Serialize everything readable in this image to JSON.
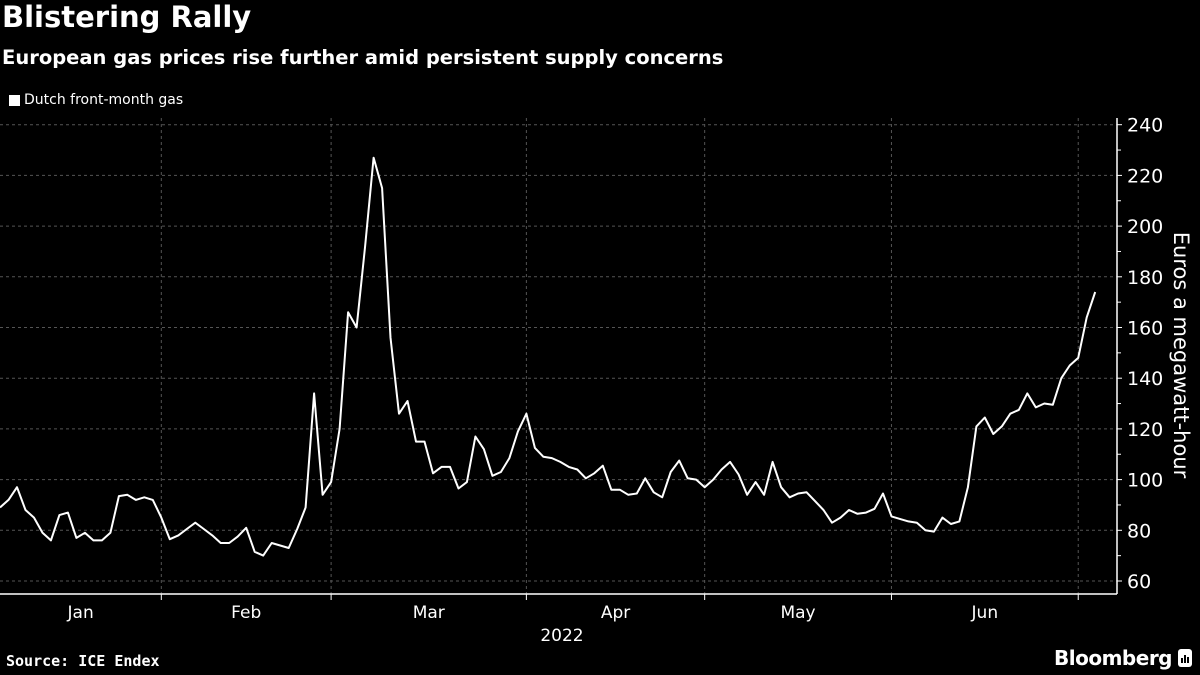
{
  "header": {
    "title": "Blistering Rally",
    "subtitle": "European gas prices rise further amid persistent supply concerns"
  },
  "footer": {
    "source": "Source: ICE Endex",
    "brand": "Bloomberg"
  },
  "colors": {
    "background": "#000000",
    "line": "#ffffff",
    "grid": "#555555"
  },
  "chart_data": {
    "type": "line",
    "title": "Blistering Rally",
    "subtitle": "European gas prices rise further amid persistent supply concerns",
    "xlabel": "2022",
    "ylabel": "Euros a megawatt-hour",
    "ylim": [
      55,
      245
    ],
    "yticks": [
      60,
      80,
      100,
      120,
      140,
      160,
      180,
      200,
      220,
      240
    ],
    "xtick_labels": [
      "Jan",
      "Feb",
      "Mar",
      "Apr",
      "May",
      "Jun"
    ],
    "grid": true,
    "legend_position": "top-left",
    "y_axis_side": "right",
    "series": [
      {
        "name": "Dutch front-month gas",
        "color": "#ffffff",
        "x": [
          "2022-01-05",
          "2022-01-06",
          "2022-01-07",
          "2022-01-10",
          "2022-01-11",
          "2022-01-12",
          "2022-01-13",
          "2022-01-14",
          "2022-01-17",
          "2022-01-18",
          "2022-01-19",
          "2022-01-20",
          "2022-01-21",
          "2022-01-24",
          "2022-01-25",
          "2022-01-26",
          "2022-01-27",
          "2022-01-28",
          "2022-01-31",
          "2022-02-01",
          "2022-02-02",
          "2022-02-03",
          "2022-02-04",
          "2022-02-07",
          "2022-02-08",
          "2022-02-09",
          "2022-02-10",
          "2022-02-11",
          "2022-02-14",
          "2022-02-15",
          "2022-02-16",
          "2022-02-17",
          "2022-02-18",
          "2022-02-21",
          "2022-02-22",
          "2022-02-23",
          "2022-02-24",
          "2022-02-25",
          "2022-02-28",
          "2022-03-01",
          "2022-03-02",
          "2022-03-03",
          "2022-03-04",
          "2022-03-07",
          "2022-03-08",
          "2022-03-09",
          "2022-03-10",
          "2022-03-11",
          "2022-03-14",
          "2022-03-15",
          "2022-03-16",
          "2022-03-17",
          "2022-03-18",
          "2022-03-21",
          "2022-03-22",
          "2022-03-23",
          "2022-03-24",
          "2022-03-25",
          "2022-03-28",
          "2022-03-29",
          "2022-03-30",
          "2022-03-31",
          "2022-04-01",
          "2022-04-04",
          "2022-04-05",
          "2022-04-06",
          "2022-04-07",
          "2022-04-08",
          "2022-04-11",
          "2022-04-12",
          "2022-04-13",
          "2022-04-14",
          "2022-04-15",
          "2022-04-18",
          "2022-04-19",
          "2022-04-20",
          "2022-04-21",
          "2022-04-22",
          "2022-04-25",
          "2022-04-26",
          "2022-04-27",
          "2022-04-28",
          "2022-04-29",
          "2022-05-02",
          "2022-05-03",
          "2022-05-04",
          "2022-05-05",
          "2022-05-06",
          "2022-05-09",
          "2022-05-10",
          "2022-05-11",
          "2022-05-12",
          "2022-05-13",
          "2022-05-16",
          "2022-05-17",
          "2022-05-18",
          "2022-05-19",
          "2022-05-20",
          "2022-05-23",
          "2022-05-24",
          "2022-05-25",
          "2022-05-26",
          "2022-05-27",
          "2022-05-30",
          "2022-05-31",
          "2022-06-01",
          "2022-06-02",
          "2022-06-03",
          "2022-06-06",
          "2022-06-07",
          "2022-06-08",
          "2022-06-09",
          "2022-06-10",
          "2022-06-13",
          "2022-06-14",
          "2022-06-15",
          "2022-06-16",
          "2022-06-17",
          "2022-06-20",
          "2022-06-21",
          "2022-06-22",
          "2022-06-23",
          "2022-06-24",
          "2022-06-27",
          "2022-06-28",
          "2022-06-29",
          "2022-06-30",
          "2022-07-01",
          "2022-07-04",
          "2022-07-05"
        ],
        "values": [
          89,
          92,
          97,
          88,
          85,
          79,
          76,
          86,
          87,
          77,
          79,
          76,
          76,
          79,
          93.5,
          94,
          92,
          93,
          92,
          85,
          76.5,
          78,
          80.5,
          83,
          80.5,
          78,
          75,
          75,
          77.5,
          81,
          71.5,
          70,
          75,
          74,
          73,
          80.5,
          89,
          134,
          94,
          99,
          120,
          166,
          160,
          192,
          227,
          215,
          156,
          126,
          131,
          115,
          115,
          102.5,
          105,
          105,
          96.5,
          99,
          117,
          112,
          101.5,
          103,
          108.5,
          119,
          126,
          112.5,
          109,
          108.5,
          107,
          105,
          104,
          100.5,
          102.5,
          105.5,
          96,
          96,
          94,
          94.5,
          100.5,
          95,
          93,
          103,
          107.5,
          100.5,
          100,
          97,
          100,
          104,
          107,
          102,
          94,
          99,
          94,
          107,
          97,
          93,
          94.5,
          95,
          91.5,
          88,
          83,
          85,
          88,
          86.5,
          87,
          88.5,
          94.5,
          85.5,
          84.5,
          83.5,
          83,
          80,
          79.5,
          85,
          82.5,
          83.5,
          97,
          121,
          124.5,
          118,
          121,
          126,
          127.5,
          134,
          128.5,
          130,
          129.5,
          140,
          145,
          148,
          164,
          174
        ]
      }
    ]
  }
}
